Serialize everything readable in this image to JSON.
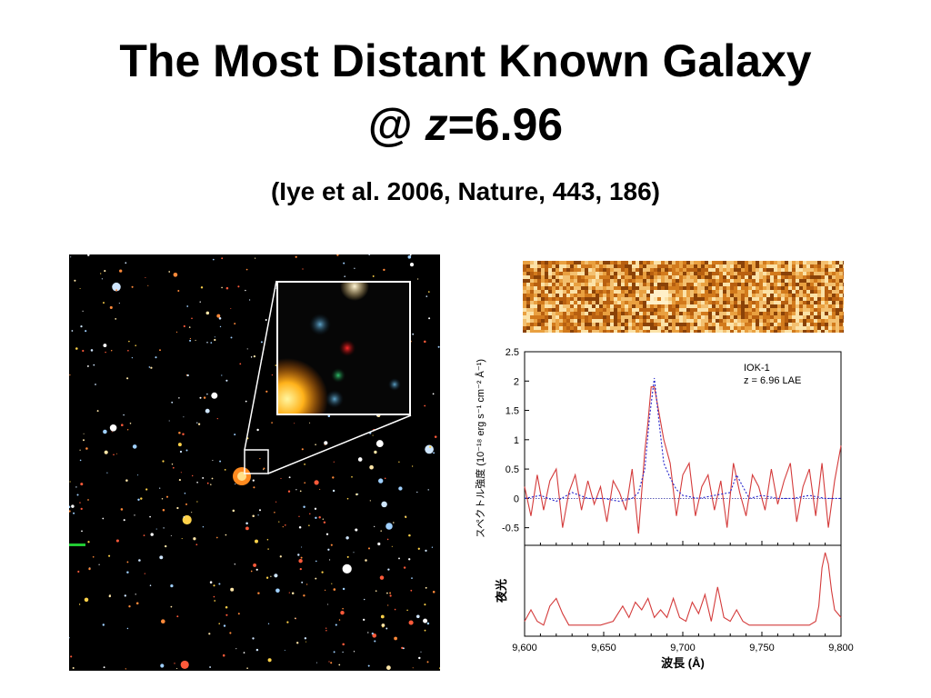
{
  "slide": {
    "title_line1": "The Most Distant Known Galaxy",
    "title_line2_prefix": "@ ",
    "title_line2_z": "z",
    "title_line2_suffix": "=6.96",
    "citation": "(Iye et al. 2006, Nature, 443, 186)"
  },
  "colors": {
    "spectrum_line": "#d43b3b",
    "model_line": "#2222cc",
    "sky_line": "#d43b3b",
    "deep_field_bg": "#000000"
  },
  "chart_data": [
    {
      "type": "line",
      "title": "",
      "annotation_line1": "IOK-1",
      "annotation_line2": "z = 6.96 LAE",
      "ylabel": "スペクトル強度 (10⁻¹⁸ erg s⁻¹ cm⁻² Å⁻¹)",
      "ylim": [
        -0.8,
        2.5
      ],
      "yticks": [
        "2.5",
        "2",
        "1.5",
        "1",
        "0.5",
        "0",
        "-0.5"
      ],
      "xlim": [
        9600,
        9800
      ],
      "grid": false,
      "series": [
        {
          "kind": "observed",
          "x": [
            9600,
            9604,
            9608,
            9612,
            9616,
            9620,
            9624,
            9628,
            9632,
            9636,
            9640,
            9644,
            9648,
            9652,
            9656,
            9660,
            9664,
            9668,
            9672,
            9676,
            9678,
            9680,
            9682,
            9684,
            9688,
            9692,
            9696,
            9700,
            9704,
            9708,
            9712,
            9716,
            9720,
            9724,
            9728,
            9732,
            9736,
            9740,
            9744,
            9748,
            9752,
            9756,
            9760,
            9764,
            9768,
            9772,
            9776,
            9780,
            9784,
            9788,
            9792,
            9796,
            9800
          ],
          "y": [
            0.2,
            -0.3,
            0.4,
            -0.2,
            0.3,
            0.5,
            -0.5,
            0.1,
            0.4,
            -0.2,
            0.3,
            -0.1,
            0.2,
            -0.4,
            0.3,
            0.1,
            -0.2,
            0.5,
            -0.6,
            0.8,
            1.3,
            1.9,
            1.9,
            1.6,
            1.0,
            0.6,
            -0.3,
            0.4,
            0.6,
            -0.3,
            0.2,
            0.4,
            -0.2,
            0.3,
            -0.5,
            0.6,
            0.1,
            -0.3,
            0.4,
            0.2,
            -0.2,
            0.5,
            -0.1,
            0.3,
            0.6,
            -0.4,
            0.2,
            0.5,
            -0.3,
            0.6,
            -0.5,
            0.3,
            0.9
          ]
        },
        {
          "kind": "model",
          "x": [
            9600,
            9610,
            9620,
            9630,
            9640,
            9650,
            9660,
            9668,
            9672,
            9676,
            9679,
            9682,
            9685,
            9688,
            9692,
            9696,
            9700,
            9710,
            9720,
            9730,
            9734,
            9738,
            9742,
            9750,
            9760,
            9770,
            9780,
            9790,
            9800
          ],
          "y": [
            0.0,
            0.05,
            -0.05,
            0.1,
            0.0,
            0.0,
            -0.05,
            0.0,
            0.1,
            0.5,
            1.4,
            2.05,
            1.3,
            0.6,
            0.35,
            0.15,
            0.05,
            0.0,
            0.05,
            0.1,
            0.4,
            0.2,
            0.0,
            0.05,
            0.0,
            0.0,
            0.05,
            0.0,
            0.0
          ]
        }
      ]
    },
    {
      "type": "line",
      "title": "",
      "ylabel": "夜光",
      "xlabel": "波長 (Å)",
      "xlim": [
        9600,
        9800
      ],
      "xticks": [
        "9,600",
        "9,650",
        "9,700",
        "9,750",
        "9,800"
      ],
      "series": [
        {
          "kind": "sky",
          "x": [
            9600,
            9604,
            9608,
            9612,
            9616,
            9620,
            9624,
            9628,
            9634,
            9640,
            9648,
            9656,
            9662,
            9666,
            9670,
            9674,
            9678,
            9682,
            9686,
            9690,
            9694,
            9698,
            9702,
            9706,
            9710,
            9714,
            9718,
            9722,
            9726,
            9730,
            9734,
            9738,
            9742,
            9746,
            9752,
            9760,
            9770,
            9780,
            9784,
            9786,
            9788,
            9790,
            9792,
            9794,
            9796,
            9800
          ],
          "y": [
            0.1,
            0.25,
            0.1,
            0.05,
            0.3,
            0.4,
            0.2,
            0.05,
            0.05,
            0.05,
            0.05,
            0.1,
            0.3,
            0.15,
            0.35,
            0.25,
            0.4,
            0.15,
            0.25,
            0.15,
            0.4,
            0.15,
            0.1,
            0.35,
            0.2,
            0.45,
            0.1,
            0.55,
            0.15,
            0.1,
            0.25,
            0.1,
            0.05,
            0.05,
            0.05,
            0.05,
            0.05,
            0.05,
            0.1,
            0.3,
            0.8,
            1.0,
            0.85,
            0.5,
            0.25,
            0.15
          ]
        }
      ]
    }
  ]
}
